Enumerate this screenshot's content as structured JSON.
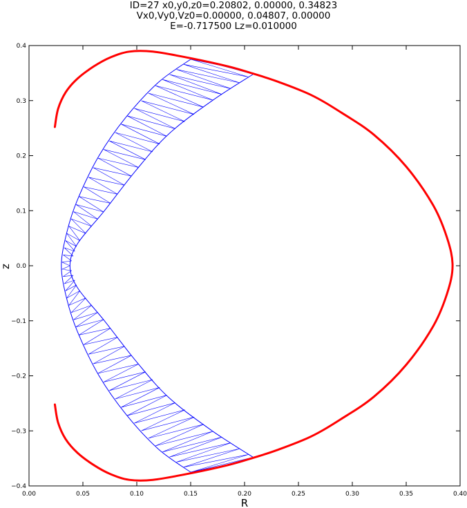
{
  "chart_data": {
    "type": "line",
    "title_lines": [
      "ID=27      x0,y0,z0=0.20802, 0.00000, 0.34823",
      "Vx0,Vy0,Vz0=0.00000, 0.04807, 0.00000",
      "E=-0.717500    Lz=0.010000"
    ],
    "xlabel": "R",
    "ylabel": "z",
    "xlim": [
      0.0,
      0.4
    ],
    "ylim": [
      -0.4,
      0.4
    ],
    "x_ticks": [
      "0.00",
      "0.05",
      "0.10",
      "0.15",
      "0.20",
      "0.25",
      "0.30",
      "0.35",
      "0.40"
    ],
    "y_ticks": [
      "0.4",
      "0.3",
      "0.2",
      "0.1",
      "0.0",
      "−0.1",
      "−0.2",
      "−0.3",
      "−0.4"
    ],
    "grid": false,
    "series": [
      {
        "color": "#ff0000",
        "role": "zero-velocity curve",
        "points": [
          [
            0.024,
            0.252
          ],
          [
            0.027,
            0.285
          ],
          [
            0.034,
            0.315
          ],
          [
            0.045,
            0.34
          ],
          [
            0.06,
            0.362
          ],
          [
            0.075,
            0.378
          ],
          [
            0.093,
            0.389
          ],
          [
            0.115,
            0.389
          ],
          [
            0.15,
            0.377
          ],
          [
            0.185,
            0.362
          ],
          [
            0.208,
            0.349
          ],
          [
            0.23,
            0.335
          ],
          [
            0.262,
            0.31
          ],
          [
            0.29,
            0.278
          ],
          [
            0.32,
            0.238
          ],
          [
            0.35,
            0.18
          ],
          [
            0.375,
            0.11
          ],
          [
            0.388,
            0.05
          ],
          [
            0.393,
            0.0
          ],
          [
            0.388,
            -0.05
          ],
          [
            0.375,
            -0.11
          ],
          [
            0.35,
            -0.18
          ],
          [
            0.32,
            -0.238
          ],
          [
            0.29,
            -0.278
          ],
          [
            0.262,
            -0.31
          ],
          [
            0.23,
            -0.335
          ],
          [
            0.208,
            -0.349
          ],
          [
            0.185,
            -0.362
          ],
          [
            0.15,
            -0.377
          ],
          [
            0.115,
            -0.389
          ],
          [
            0.093,
            -0.389
          ],
          [
            0.075,
            -0.378
          ],
          [
            0.06,
            -0.362
          ],
          [
            0.045,
            -0.34
          ],
          [
            0.034,
            -0.315
          ],
          [
            0.027,
            -0.285
          ],
          [
            0.024,
            -0.252
          ]
        ]
      },
      {
        "color": "#0000ff",
        "role": "orbit",
        "outer_edge": [
          [
            0.15,
            0.375
          ],
          [
            0.12,
            0.333
          ],
          [
            0.09,
            0.27
          ],
          [
            0.065,
            0.2
          ],
          [
            0.045,
            0.12
          ],
          [
            0.035,
            0.06
          ],
          [
            0.03,
            0.0
          ],
          [
            0.035,
            -0.06
          ],
          [
            0.045,
            -0.12
          ],
          [
            0.065,
            -0.2
          ],
          [
            0.09,
            -0.27
          ],
          [
            0.12,
            -0.333
          ],
          [
            0.15,
            -0.375
          ]
        ],
        "inner_edge": [
          [
            0.208,
            0.348
          ],
          [
            0.17,
            0.3
          ],
          [
            0.13,
            0.24
          ],
          [
            0.1,
            0.175
          ],
          [
            0.07,
            0.1
          ],
          [
            0.045,
            0.04
          ],
          [
            0.038,
            0.0
          ],
          [
            0.045,
            -0.04
          ],
          [
            0.07,
            -0.1
          ],
          [
            0.1,
            -0.175
          ],
          [
            0.13,
            -0.24
          ],
          [
            0.17,
            -0.3
          ],
          [
            0.208,
            -0.348
          ]
        ],
        "upper_envelope": [
          [
            0.15,
            0.375
          ],
          [
            0.18,
            0.363
          ],
          [
            0.208,
            0.348
          ]
        ],
        "lower_envelope": [
          [
            0.15,
            -0.375
          ],
          [
            0.18,
            -0.363
          ],
          [
            0.208,
            -0.348
          ]
        ]
      }
    ]
  }
}
